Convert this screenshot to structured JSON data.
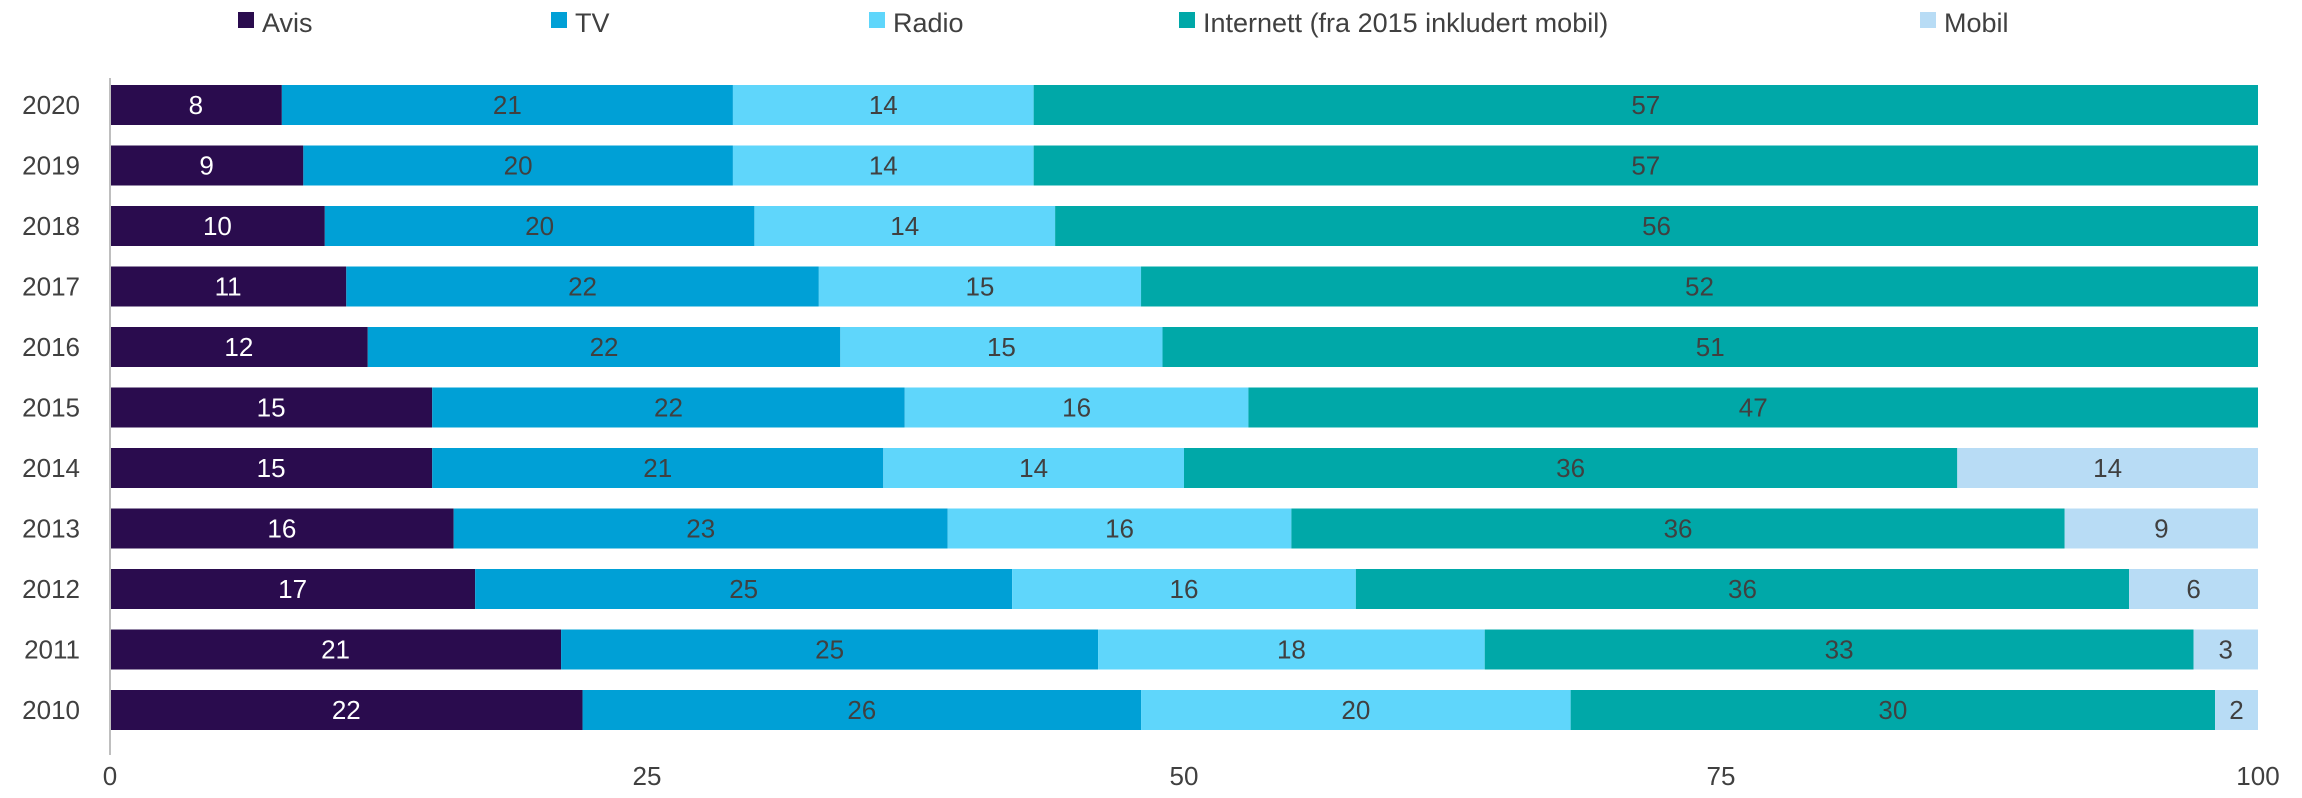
{
  "chart_data": {
    "type": "bar",
    "orientation": "horizontal",
    "stacked": true,
    "title": "",
    "xlabel": "",
    "ylabel": "",
    "xlim": [
      0,
      100
    ],
    "x_ticks": [
      0,
      25,
      50,
      75,
      100
    ],
    "legend_position": "top",
    "grid": false,
    "categories": [
      "2020",
      "2019",
      "2018",
      "2017",
      "2016",
      "2015",
      "2014",
      "2013",
      "2012",
      "2011",
      "2010"
    ],
    "series": [
      {
        "name": "Avis",
        "color": "#2a0c4e",
        "label_color": "#ffffff",
        "values": [
          8,
          9,
          10,
          11,
          12,
          15,
          15,
          16,
          17,
          21,
          22
        ]
      },
      {
        "name": "TV",
        "color": "#00a0d6",
        "label_color": "#404040",
        "values": [
          21,
          20,
          20,
          22,
          22,
          22,
          21,
          23,
          25,
          25,
          26
        ]
      },
      {
        "name": "Radio",
        "color": "#5fd6fb",
        "label_color": "#404040",
        "values": [
          14,
          14,
          14,
          15,
          15,
          16,
          14,
          16,
          16,
          18,
          20
        ]
      },
      {
        "name": "Internett (fra 2015 inkludert mobil)",
        "color": "#00a8a8",
        "label_color": "#404040",
        "values": [
          57,
          57,
          56,
          52,
          51,
          47,
          36,
          36,
          36,
          33,
          30
        ]
      },
      {
        "name": "Mobil",
        "color": "#b8dcf5",
        "label_color": "#404040",
        "values": [
          null,
          null,
          null,
          null,
          null,
          null,
          14,
          9,
          6,
          3,
          2
        ]
      }
    ]
  }
}
